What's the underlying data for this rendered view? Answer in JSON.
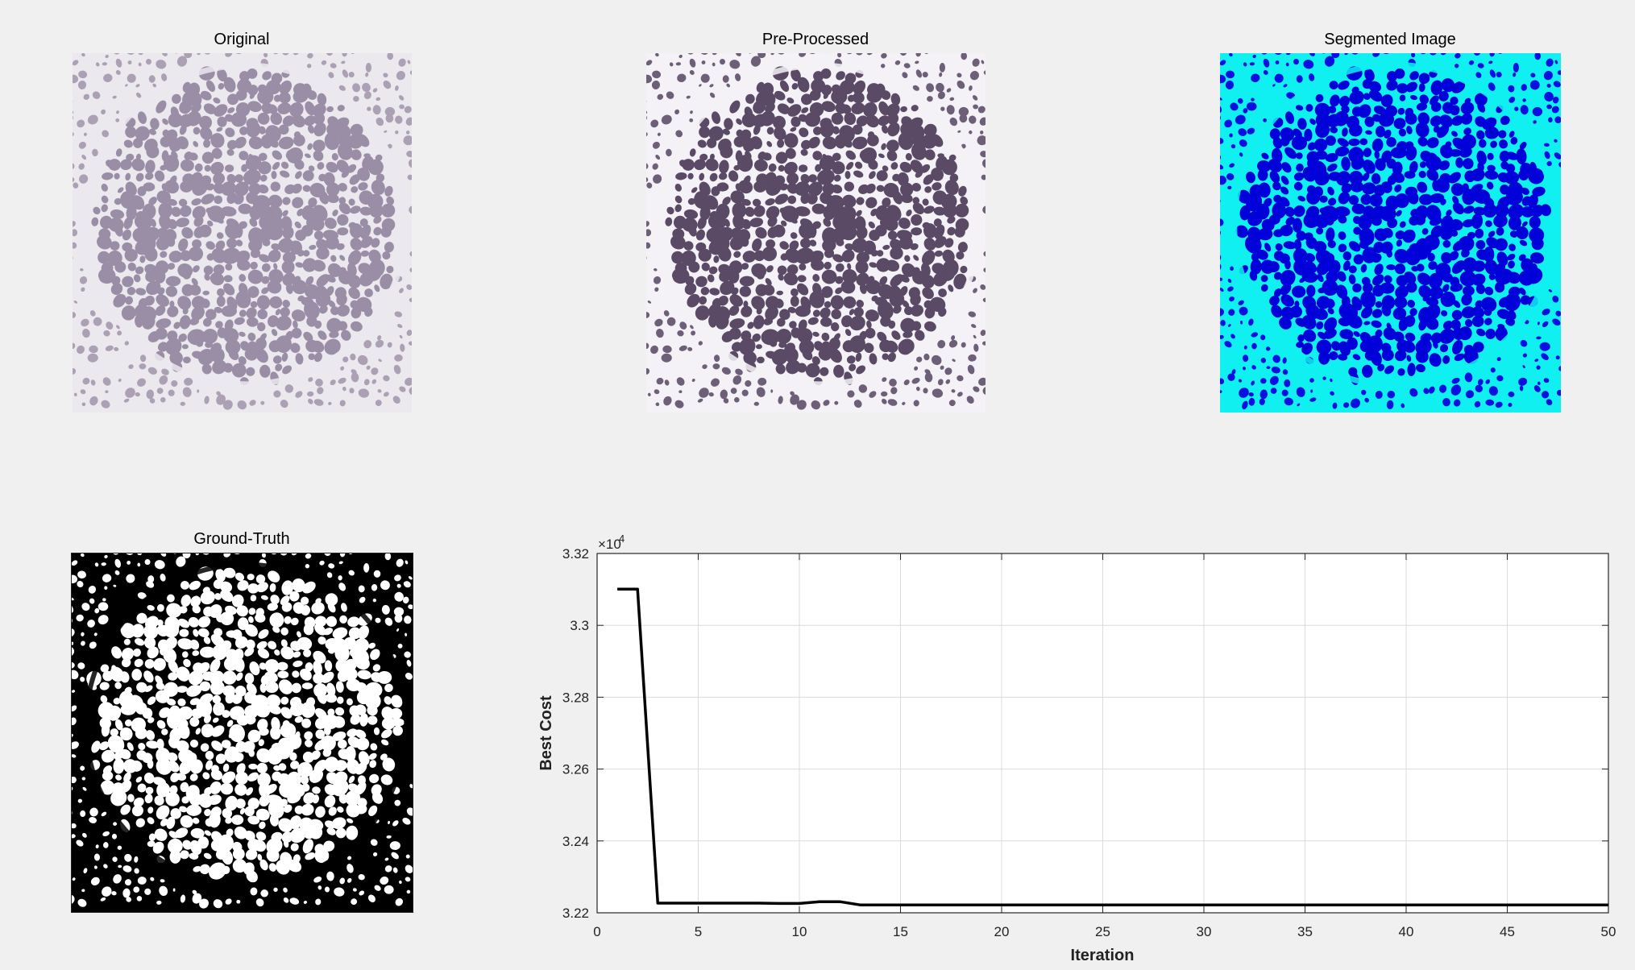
{
  "panels": {
    "original": {
      "title": "Original",
      "palette": {
        "bg": "#aba0b4",
        "cell": "#9a8ea6",
        "membrane": "#ebe8ee"
      }
    },
    "preprocessed": {
      "title": "Pre-Processed",
      "palette": {
        "bg": "#6e5f78",
        "cell": "#5a4a66",
        "membrane": "#f4f2f6"
      }
    },
    "segmented": {
      "title": "Segmented Image",
      "palette": {
        "bg": "#0a10e0",
        "cell": "#0000d8",
        "membrane": "#10f0f0"
      }
    },
    "ground_truth": {
      "title": "Ground-Truth",
      "palette": {
        "bg": "#ffffff",
        "cell": "#ffffff",
        "membrane": "#000000"
      }
    }
  },
  "chart_data": {
    "type": "line",
    "xlabel": "Iteration",
    "ylabel": "Best Cost",
    "exponent_label": "×10",
    "exponent_power": "4",
    "xlim": [
      0,
      50
    ],
    "ylim": [
      3.22,
      3.32
    ],
    "xticks": [
      0,
      5,
      10,
      15,
      20,
      25,
      30,
      35,
      40,
      45,
      50
    ],
    "yticks": [
      3.22,
      3.24,
      3.26,
      3.28,
      3.3,
      3.32
    ],
    "ytick_labels": [
      "3.22",
      "3.24",
      "3.26",
      "3.28",
      "3.3",
      "3.32"
    ],
    "grid": true,
    "line_color": "#000000",
    "series": [
      {
        "x": [
          1,
          2,
          3,
          4,
          5,
          6,
          7,
          8,
          9,
          10,
          11,
          12,
          13,
          14,
          15,
          16,
          17,
          18,
          19,
          20,
          21,
          22,
          23,
          24,
          25,
          26,
          27,
          28,
          29,
          30,
          31,
          32,
          33,
          34,
          35,
          36,
          37,
          38,
          39,
          40,
          41,
          42,
          43,
          44,
          45,
          46,
          47,
          48,
          49,
          50
        ],
        "values": [
          3.3101,
          3.3101,
          3.2227,
          3.2227,
          3.2227,
          3.2227,
          3.2227,
          3.2227,
          3.2226,
          3.2226,
          3.2231,
          3.2231,
          3.2222,
          3.2222,
          3.2222,
          3.2222,
          3.2222,
          3.2222,
          3.2222,
          3.2222,
          3.2222,
          3.2222,
          3.2222,
          3.2222,
          3.2222,
          3.2222,
          3.2222,
          3.2222,
          3.2222,
          3.2222,
          3.2222,
          3.2222,
          3.2222,
          3.2222,
          3.2222,
          3.2222,
          3.2222,
          3.2222,
          3.2222,
          3.2222,
          3.2222,
          3.2222,
          3.2222,
          3.2222,
          3.2222,
          3.2222,
          3.2222,
          3.2222,
          3.2222,
          3.2222
        ]
      }
    ]
  }
}
